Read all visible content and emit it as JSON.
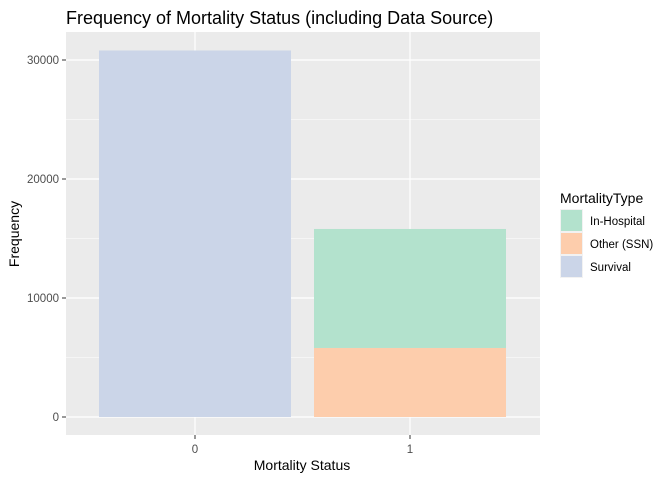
{
  "chart_data": {
    "type": "bar",
    "stacked": true,
    "title": "Frequency of Mortality Status (including Data Source)",
    "xlabel": "Mortality Status",
    "ylabel": "Frequency",
    "categories": [
      "0",
      "1"
    ],
    "ylim": [
      0,
      32000
    ],
    "yticks": [
      0,
      10000,
      20000,
      30000
    ],
    "grid": true,
    "legend": {
      "title": "MortalityType",
      "position": "right",
      "entries": [
        "In-Hospital",
        "Other (SSN)",
        "Survival"
      ]
    },
    "series": [
      {
        "name": "Survival",
        "values": [
          30800,
          0
        ],
        "color": "#cbd5e8"
      },
      {
        "name": "Other (SSN)",
        "values": [
          0,
          5800
        ],
        "color": "#fdcdac"
      },
      {
        "name": "In-Hospital",
        "values": [
          0,
          10000
        ],
        "color": "#b3e2cd"
      }
    ]
  }
}
